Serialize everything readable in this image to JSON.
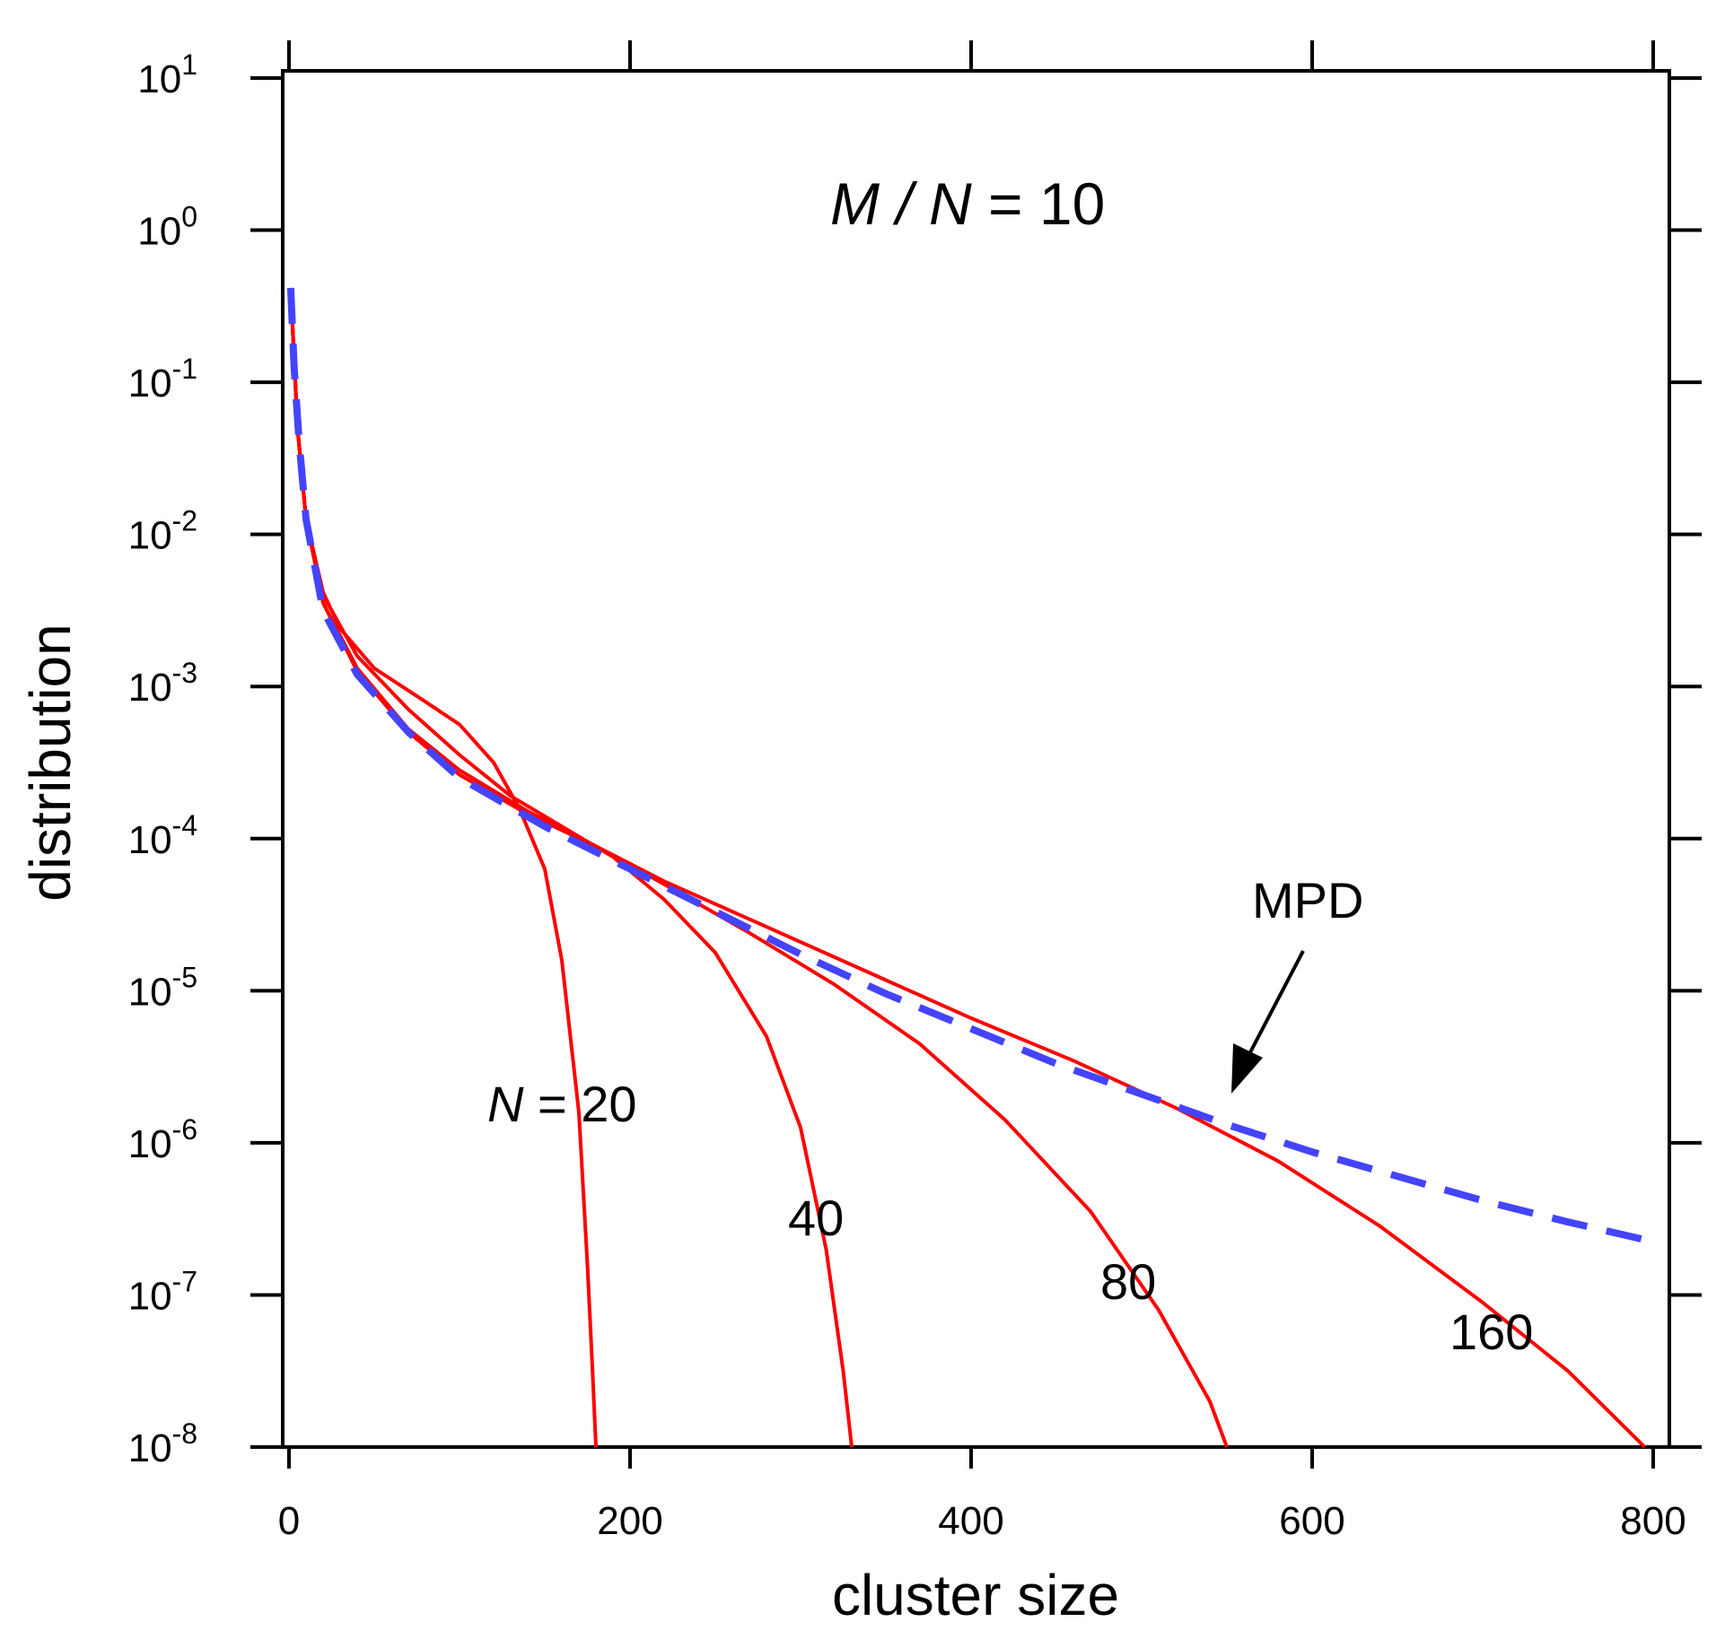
{
  "chart_data": {
    "type": "line",
    "title": "M / N = 10",
    "title_parts": {
      "m": "M",
      "slash": " / ",
      "n": "N",
      "rest": " = 10"
    },
    "xlabel": "cluster size",
    "ylabel": "distribution",
    "xlim": [
      0,
      800
    ],
    "ylim_log10": [
      -8,
      1
    ],
    "y_scale": "log",
    "x_ticks": [
      0,
      200,
      400,
      600,
      800
    ],
    "x_tick_labels": [
      "0",
      "200",
      "400",
      "600",
      "800"
    ],
    "y_tick_exponents": [
      1,
      0,
      -1,
      -2,
      -3,
      -4,
      -5,
      -6,
      -7,
      -8
    ],
    "y_tick_base": "10",
    "grid": false,
    "series": [
      {
        "name": "N = 20",
        "label": "20",
        "label_prefix": "N",
        "color": "#ff0000",
        "style": "solid",
        "points": [
          [
            1,
            -0.38
          ],
          [
            5,
            -1.3
          ],
          [
            10,
            -1.9
          ],
          [
            20,
            -2.38
          ],
          [
            30,
            -2.62
          ],
          [
            50,
            -2.88
          ],
          [
            80,
            -3.1
          ],
          [
            100,
            -3.25
          ],
          [
            120,
            -3.5
          ],
          [
            135,
            -3.8
          ],
          [
            150,
            -4.2
          ],
          [
            160,
            -4.8
          ],
          [
            170,
            -5.8
          ],
          [
            175,
            -6.8
          ],
          [
            178,
            -7.5
          ],
          [
            180,
            -8.0
          ]
        ]
      },
      {
        "name": "N = 40",
        "label": "40",
        "color": "#ff0000",
        "style": "solid",
        "points": [
          [
            1,
            -0.38
          ],
          [
            5,
            -1.3
          ],
          [
            10,
            -1.9
          ],
          [
            20,
            -2.4
          ],
          [
            40,
            -2.8
          ],
          [
            70,
            -3.15
          ],
          [
            100,
            -3.45
          ],
          [
            130,
            -3.72
          ],
          [
            160,
            -3.92
          ],
          [
            190,
            -4.12
          ],
          [
            220,
            -4.4
          ],
          [
            250,
            -4.75
          ],
          [
            280,
            -5.3
          ],
          [
            300,
            -5.9
          ],
          [
            315,
            -6.7
          ],
          [
            325,
            -7.5
          ],
          [
            330,
            -8.0
          ]
        ]
      },
      {
        "name": "N = 80",
        "label": "80",
        "color": "#ff0000",
        "style": "solid",
        "points": [
          [
            1,
            -0.38
          ],
          [
            5,
            -1.3
          ],
          [
            10,
            -1.9
          ],
          [
            20,
            -2.45
          ],
          [
            40,
            -2.88
          ],
          [
            70,
            -3.28
          ],
          [
            100,
            -3.55
          ],
          [
            140,
            -3.82
          ],
          [
            180,
            -4.05
          ],
          [
            220,
            -4.3
          ],
          [
            270,
            -4.62
          ],
          [
            320,
            -4.96
          ],
          [
            370,
            -5.35
          ],
          [
            420,
            -5.85
          ],
          [
            470,
            -6.45
          ],
          [
            510,
            -7.1
          ],
          [
            540,
            -7.7
          ],
          [
            550,
            -8.0
          ]
        ]
      },
      {
        "name": "N = 160",
        "label": "160",
        "color": "#ff0000",
        "style": "solid",
        "points": [
          [
            1,
            -0.38
          ],
          [
            5,
            -1.3
          ],
          [
            10,
            -1.9
          ],
          [
            20,
            -2.45
          ],
          [
            40,
            -2.9
          ],
          [
            70,
            -3.3
          ],
          [
            100,
            -3.58
          ],
          [
            140,
            -3.84
          ],
          [
            180,
            -4.05
          ],
          [
            220,
            -4.28
          ],
          [
            280,
            -4.58
          ],
          [
            340,
            -4.88
          ],
          [
            400,
            -5.18
          ],
          [
            460,
            -5.46
          ],
          [
            520,
            -5.77
          ],
          [
            580,
            -6.12
          ],
          [
            640,
            -6.55
          ],
          [
            700,
            -7.05
          ],
          [
            750,
            -7.5
          ],
          [
            795,
            -8.0
          ]
        ]
      },
      {
        "name": "MPD",
        "label": "MPD",
        "color": "#4444ff",
        "style": "dashed",
        "points": [
          [
            1,
            -0.38
          ],
          [
            3,
            -0.9
          ],
          [
            6,
            -1.4
          ],
          [
            10,
            -1.9
          ],
          [
            20,
            -2.5
          ],
          [
            40,
            -2.92
          ],
          [
            70,
            -3.3
          ],
          [
            100,
            -3.6
          ],
          [
            150,
            -3.92
          ],
          [
            200,
            -4.2
          ],
          [
            250,
            -4.48
          ],
          [
            300,
            -4.76
          ],
          [
            350,
            -5.02
          ],
          [
            400,
            -5.25
          ],
          [
            450,
            -5.48
          ],
          [
            500,
            -5.68
          ],
          [
            550,
            -5.88
          ],
          [
            600,
            -6.06
          ],
          [
            650,
            -6.22
          ],
          [
            700,
            -6.38
          ],
          [
            750,
            -6.52
          ],
          [
            800,
            -6.65
          ]
        ]
      }
    ],
    "annotations": [
      {
        "text": "MPD",
        "arrow_to_x": 550
      }
    ]
  }
}
